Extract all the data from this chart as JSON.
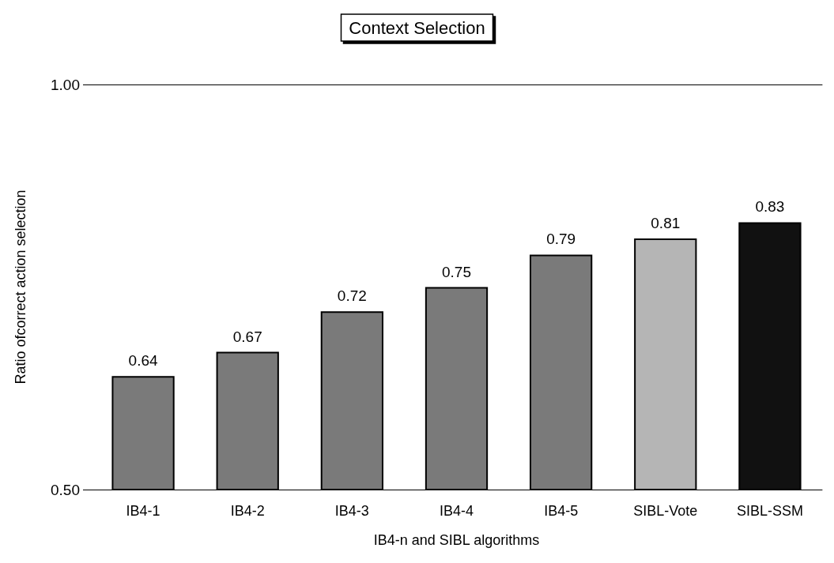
{
  "chart_data": {
    "type": "bar",
    "title": "Context Selection",
    "xlabel": "IB4-n and SIBL algorithms",
    "ylabel": "Ratio ofcorrect action selection",
    "categories": [
      "IB4-1",
      "IB4-2",
      "IB4-3",
      "IB4-4",
      "IB4-5",
      "SIBL-Vote",
      "SIBL-SSM"
    ],
    "values": [
      0.64,
      0.67,
      0.72,
      0.75,
      0.79,
      0.81,
      0.83
    ],
    "colors": [
      "#7a7a7a",
      "#7a7a7a",
      "#7a7a7a",
      "#7a7a7a",
      "#7a7a7a",
      "#b5b5b5",
      "#111111"
    ],
    "ylim": [
      0.5,
      1.0
    ],
    "yticks": [
      {
        "value": 0.5,
        "label": "0.50"
      },
      {
        "value": 1.0,
        "label": "1.00"
      }
    ],
    "data_labels": true
  }
}
